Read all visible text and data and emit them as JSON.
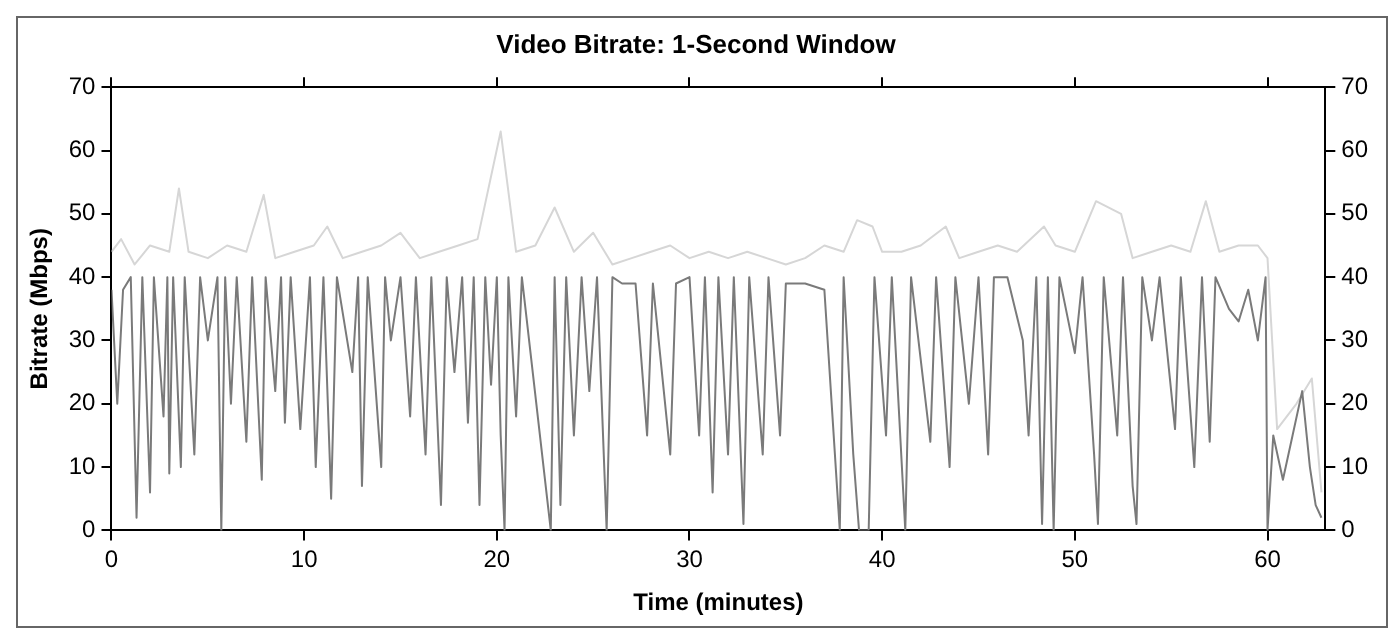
{
  "chart_data": {
    "type": "line",
    "title": "Video Bitrate: 1-Second Window",
    "xlabel": "Time (minutes)",
    "ylabel": "Bitrate (Mbps)",
    "xlim": [
      0,
      63
    ],
    "xticks": [
      0,
      10,
      20,
      30,
      40,
      50,
      60
    ],
    "ylim": [
      0,
      70
    ],
    "yticks": [
      0,
      10,
      20,
      30,
      40,
      50,
      60,
      70
    ],
    "y2lim": [
      0,
      70
    ],
    "y2ticks": [
      0,
      10,
      20,
      30,
      40,
      50,
      60,
      70
    ],
    "grid": false,
    "legend": false,
    "marker": "none",
    "line_style": "solid",
    "series": [
      {
        "color": "#7a7a7a",
        "x": [
          0,
          0.3,
          0.6,
          1.0,
          1.3,
          1.6,
          2.0,
          2.2,
          2.7,
          2.9,
          3.0,
          3.2,
          3.6,
          3.8,
          4.3,
          4.6,
          5.0,
          5.5,
          5.7,
          5.9,
          6.2,
          6.5,
          7.0,
          7.3,
          7.8,
          8.0,
          8.5,
          8.8,
          9.0,
          9.3,
          9.8,
          10.3,
          10.6,
          11.0,
          11.4,
          11.7,
          12.5,
          12.8,
          13.0,
          13.3,
          14.0,
          14.2,
          14.5,
          15.0,
          15.5,
          15.8,
          16.3,
          16.6,
          17.1,
          17.4,
          17.8,
          18.2,
          18.5,
          18.8,
          19.1,
          19.4,
          19.7,
          20.0,
          20.2,
          20.4,
          20.6,
          21.0,
          21.3,
          22.8,
          23.0,
          23.3,
          23.6,
          24.0,
          24.4,
          24.8,
          25.2,
          25.7,
          26.0,
          26.5,
          27.2,
          27.8,
          28.1,
          29.0,
          29.3,
          30.0,
          30.5,
          30.8,
          31.2,
          31.5,
          32.0,
          32.3,
          32.8,
          33.1,
          33.8,
          34.1,
          34.7,
          35.0,
          36.0,
          37.0,
          37.8,
          38.0,
          38.5,
          38.8,
          39.3,
          39.6,
          40.2,
          40.5,
          41.2,
          41.5,
          42.5,
          42.8,
          43.5,
          43.8,
          44.5,
          45.0,
          45.5,
          45.8,
          46.5,
          47.3,
          47.6,
          48.0,
          48.3,
          48.6,
          48.9,
          49.2,
          50.0,
          50.4,
          51.0,
          51.2,
          51.5,
          52.2,
          52.5,
          53.0,
          53.2,
          53.5,
          54.0,
          54.4,
          55.2,
          55.5,
          56.2,
          56.6,
          57.0,
          57.3,
          58.0,
          58.5,
          59.0,
          59.5,
          59.9,
          60.0,
          60.3,
          60.8,
          61.3,
          61.8,
          62.2,
          62.5,
          62.8
        ],
        "values": [
          38,
          20,
          38,
          40,
          2,
          40,
          6,
          40,
          18,
          40,
          9,
          40,
          10,
          40,
          12,
          40,
          30,
          40,
          0,
          40,
          20,
          40,
          14,
          40,
          8,
          40,
          22,
          40,
          17,
          40,
          16,
          40,
          10,
          40,
          5,
          40,
          25,
          40,
          7,
          40,
          10,
          40,
          30,
          40,
          18,
          40,
          12,
          40,
          4,
          40,
          25,
          40,
          17,
          40,
          4,
          40,
          23,
          40,
          15,
          0,
          40,
          18,
          40,
          0,
          40,
          4,
          40,
          15,
          40,
          22,
          40,
          0,
          40,
          39,
          39,
          15,
          39,
          12,
          39,
          40,
          15,
          40,
          6,
          40,
          12,
          40,
          1,
          40,
          12,
          40,
          15,
          39,
          39,
          38,
          0,
          40,
          12,
          0,
          0,
          40,
          15,
          40,
          0,
          40,
          14,
          40,
          10,
          40,
          20,
          40,
          12,
          40,
          40,
          30,
          15,
          40,
          1,
          40,
          0,
          40,
          28,
          40,
          12,
          1,
          40,
          15,
          40,
          7,
          1,
          40,
          30,
          40,
          16,
          40,
          10,
          40,
          14,
          40,
          35,
          33,
          38,
          30,
          40,
          0,
          15,
          8,
          15,
          22,
          10,
          4,
          2
        ]
      },
      {
        "color": "#d6d6d6",
        "x": [
          0,
          0.5,
          1.2,
          2.0,
          3.0,
          3.5,
          4.0,
          5.0,
          6.0,
          7.0,
          7.9,
          8.5,
          9.5,
          10.5,
          11.2,
          12.0,
          13.0,
          14.0,
          15.0,
          16.0,
          17.0,
          18.0,
          19.0,
          20.2,
          21.0,
          22.0,
          23.0,
          24.0,
          25.0,
          26.0,
          27.0,
          28.0,
          29.0,
          30.0,
          31.0,
          32.0,
          33.0,
          34.0,
          35.0,
          36.0,
          37.0,
          38.0,
          38.7,
          39.5,
          40.0,
          41.0,
          42.0,
          43.3,
          44.0,
          45.0,
          46.0,
          47.0,
          48.4,
          49.0,
          50.0,
          51.1,
          52.4,
          53.0,
          54.0,
          55.0,
          56.0,
          56.8,
          57.5,
          58.5,
          59.5,
          60.0,
          60.5,
          61.5,
          62.3,
          62.8
        ],
        "values": [
          44,
          46,
          42,
          45,
          44,
          54,
          44,
          43,
          45,
          44,
          53,
          43,
          44,
          45,
          48,
          43,
          44,
          45,
          47,
          43,
          44,
          45,
          46,
          63,
          44,
          45,
          51,
          44,
          47,
          42,
          43,
          44,
          45,
          43,
          44,
          43,
          44,
          43,
          42,
          43,
          45,
          44,
          49,
          48,
          44,
          44,
          45,
          48,
          43,
          44,
          45,
          44,
          48,
          45,
          44,
          52,
          50,
          43,
          44,
          45,
          44,
          52,
          44,
          45,
          45,
          43,
          16,
          20,
          24,
          6
        ]
      }
    ]
  }
}
